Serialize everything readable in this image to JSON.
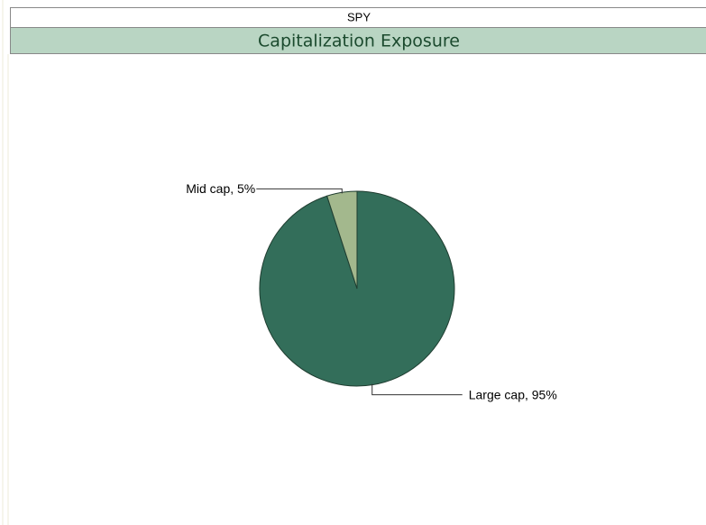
{
  "header": {
    "ticker": "SPY"
  },
  "chart_data": {
    "type": "pie",
    "title": "Capitalization Exposure",
    "labels": [
      "Large cap, 95%",
      "Mid cap, 5%"
    ],
    "values": [
      95,
      5
    ],
    "colors": [
      "#336e5a",
      "#a3b88d"
    ]
  }
}
